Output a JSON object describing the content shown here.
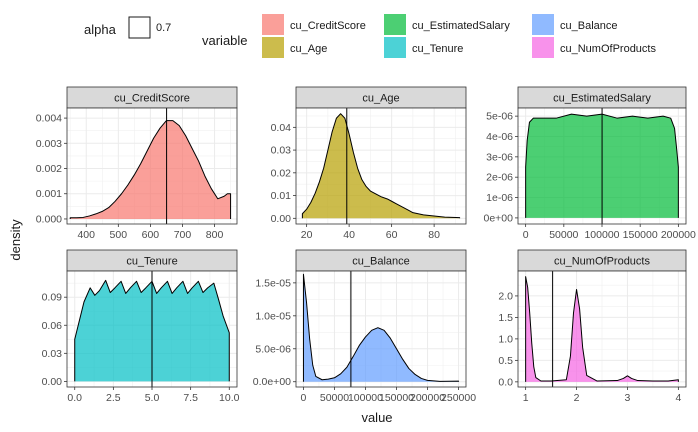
{
  "chart_data": {
    "type": "area",
    "xlabel": "value",
    "ylabel": "density",
    "legend": {
      "position": "top",
      "alpha_title": "alpha",
      "alpha_value_label": "0.7",
      "variable_title": "variable",
      "entries": [
        {
          "label": "cu_CreditScore",
          "color": "#F8766D"
        },
        {
          "label": "cu_EstimatedSalary",
          "color": "#00BA38"
        },
        {
          "label": "cu_Balance",
          "color": "#619CFF"
        },
        {
          "label": "cu_Age",
          "color": "#B79F00"
        },
        {
          "label": "cu_Tenure",
          "color": "#00BFC4"
        },
        {
          "label": "cu_NumOfProducts",
          "color": "#F564E3"
        }
      ]
    },
    "grid": true,
    "alpha": 0.7,
    "panels": [
      {
        "title": "cu_CreditScore",
        "color": "#F8766D",
        "xlim": [
          340,
          870
        ],
        "ylim": [
          -0.0002,
          0.0044
        ],
        "xticks": [
          400,
          500,
          600,
          700,
          800
        ],
        "yticks": [
          0,
          0.001,
          0.002,
          0.003,
          0.004
        ],
        "ytick_labels": [
          "0.000",
          "0.001",
          "0.002",
          "0.003",
          "0.004"
        ],
        "mean": 650.5,
        "x": [
          350,
          370,
          390,
          410,
          430,
          450,
          470,
          490,
          510,
          530,
          550,
          570,
          590,
          610,
          630,
          650,
          670,
          690,
          710,
          730,
          750,
          770,
          790,
          810,
          830,
          840,
          850
        ],
        "y": [
          5e-05,
          5e-05,
          6e-05,
          0.00012,
          0.0002,
          0.0003,
          0.00045,
          0.0007,
          0.001,
          0.00135,
          0.00175,
          0.0022,
          0.0027,
          0.0032,
          0.0036,
          0.0039,
          0.0039,
          0.0037,
          0.0033,
          0.0028,
          0.0023,
          0.0017,
          0.0012,
          0.0008,
          0.0009,
          0.001,
          0.001
        ]
      },
      {
        "title": "cu_Age",
        "color": "#B79F00",
        "xlim": [
          15,
          95
        ],
        "ylim": [
          -0.0025,
          0.0485
        ],
        "xticks": [
          20,
          40,
          60,
          80
        ],
        "yticks": [
          0,
          0.01,
          0.02,
          0.03,
          0.04
        ],
        "ytick_labels": [
          "0.00",
          "0.01",
          "0.02",
          "0.03",
          "0.04"
        ],
        "mean": 38.9,
        "x": [
          18,
          20,
          22,
          24,
          26,
          28,
          30,
          32,
          34,
          36,
          38,
          40,
          42,
          44,
          46,
          48,
          50,
          52,
          55,
          58,
          60,
          62,
          65,
          68,
          70,
          75,
          80,
          85,
          92
        ],
        "y": [
          0.002,
          0.004,
          0.007,
          0.011,
          0.016,
          0.022,
          0.03,
          0.038,
          0.044,
          0.046,
          0.044,
          0.037,
          0.029,
          0.022,
          0.017,
          0.014,
          0.012,
          0.011,
          0.0095,
          0.0085,
          0.0075,
          0.0065,
          0.005,
          0.0035,
          0.0025,
          0.0015,
          0.001,
          0.0005,
          0.0003
        ]
      },
      {
        "title": "cu_EstimatedSalary",
        "color": "#00BA38",
        "xlim": [
          -10000,
          210000
        ],
        "ylim": [
          -3e-07,
          5.4e-06
        ],
        "xticks": [
          0,
          50000,
          100000,
          150000,
          200000
        ],
        "yticks": [
          0,
          1e-06,
          2e-06,
          3e-06,
          4e-06,
          5e-06
        ],
        "ytick_labels": [
          "0e+00",
          "1e-06",
          "2e-06",
          "3e-06",
          "4e-06",
          "5e-06"
        ],
        "mean": 100090,
        "x": [
          0,
          2000,
          5000,
          10000,
          20000,
          40000,
          60000,
          80000,
          100000,
          120000,
          140000,
          160000,
          180000,
          190000,
          195000,
          198000,
          200000
        ],
        "y": [
          2.5e-06,
          3.8e-06,
          4.7e-06,
          4.9e-06,
          4.9e-06,
          4.9e-06,
          5.1e-06,
          5e-06,
          5.1e-06,
          4.9e-06,
          5e-06,
          4.9e-06,
          5e-06,
          4.9e-06,
          4.4e-06,
          3.3e-06,
          2.5e-06
        ]
      },
      {
        "title": "cu_Tenure",
        "color": "#00BFC4",
        "xlim": [
          -0.5,
          10.5
        ],
        "ylim": [
          -0.006,
          0.118
        ],
        "xticks": [
          0,
          2.5,
          5,
          7.5,
          10
        ],
        "xtick_labels": [
          "0.0",
          "2.5",
          "5.0",
          "7.5",
          "10.0"
        ],
        "yticks": [
          0,
          0.03,
          0.06,
          0.09
        ],
        "ytick_labels": [
          "0.00",
          "0.03",
          "0.06",
          "0.09"
        ],
        "mean": 5.0,
        "x": [
          0,
          0.3,
          0.6,
          1,
          1.3,
          1.6,
          2,
          2.3,
          2.6,
          3,
          3.3,
          3.6,
          4,
          4.3,
          4.6,
          5,
          5.3,
          5.6,
          6,
          6.3,
          6.6,
          7,
          7.3,
          7.6,
          8,
          8.3,
          8.6,
          9,
          9.3,
          9.6,
          10
        ],
        "y": [
          0.045,
          0.065,
          0.085,
          0.1,
          0.092,
          0.097,
          0.108,
          0.095,
          0.1,
          0.107,
          0.094,
          0.1,
          0.107,
          0.095,
          0.1,
          0.107,
          0.094,
          0.1,
          0.107,
          0.094,
          0.1,
          0.107,
          0.094,
          0.1,
          0.107,
          0.095,
          0.1,
          0.105,
          0.088,
          0.07,
          0.052
        ]
      },
      {
        "title": "cu_Balance",
        "color": "#619CFF",
        "xlim": [
          -12000,
          262000
        ],
        "ylim": [
          -8e-07,
          1.68e-05
        ],
        "xticks": [
          0,
          50000,
          100000,
          150000,
          200000,
          250000
        ],
        "yticks": [
          0,
          5e-06,
          1e-05,
          1.5e-05
        ],
        "ytick_labels": [
          "0.0e+00",
          "5.0e-06",
          "1.0e-05",
          "1.5e-05"
        ],
        "mean": 76486,
        "x": [
          0,
          5000,
          10000,
          15000,
          20000,
          30000,
          40000,
          50000,
          60000,
          70000,
          80000,
          90000,
          100000,
          110000,
          120000,
          130000,
          140000,
          150000,
          160000,
          170000,
          180000,
          190000,
          200000,
          220000,
          250000
        ],
        "y": [
          1.63e-05,
          1.2e-05,
          6.5e-06,
          2.5e-06,
          8e-07,
          3e-07,
          4e-07,
          6e-07,
          1.2e-06,
          2.2e-06,
          3.8e-06,
          5.5e-06,
          6.8e-06,
          7.8e-06,
          8.2e-06,
          7.8e-06,
          6.6e-06,
          5e-06,
          3.4e-06,
          2e-06,
          1.1e-06,
          5e-07,
          2e-07,
          5e-08,
          1e-07
        ]
      },
      {
        "title": "cu_NumOfProducts",
        "color": "#F564E3",
        "xlim": [
          0.85,
          4.15
        ],
        "ylim": [
          -0.12,
          2.58
        ],
        "xticks": [
          1,
          2,
          3,
          4
        ],
        "yticks": [
          0,
          0.5,
          1,
          1.5,
          2
        ],
        "ytick_labels": [
          "0.0",
          "0.5",
          "1.0",
          "1.5",
          "2.0"
        ],
        "mean": 1.53,
        "x": [
          1,
          1.04,
          1.08,
          1.12,
          1.16,
          1.2,
          1.3,
          1.5,
          1.8,
          1.88,
          1.94,
          2.0,
          2.06,
          2.12,
          2.2,
          2.4,
          2.8,
          2.92,
          3.0,
          3.08,
          3.2,
          3.5,
          3.8,
          4.0
        ],
        "y": [
          2.45,
          2.2,
          1.6,
          0.9,
          0.35,
          0.1,
          0.02,
          0.02,
          0.05,
          0.6,
          1.6,
          2.15,
          1.7,
          0.8,
          0.15,
          0.02,
          0.03,
          0.08,
          0.14,
          0.08,
          0.03,
          0.02,
          0.02,
          0.05
        ]
      }
    ]
  }
}
